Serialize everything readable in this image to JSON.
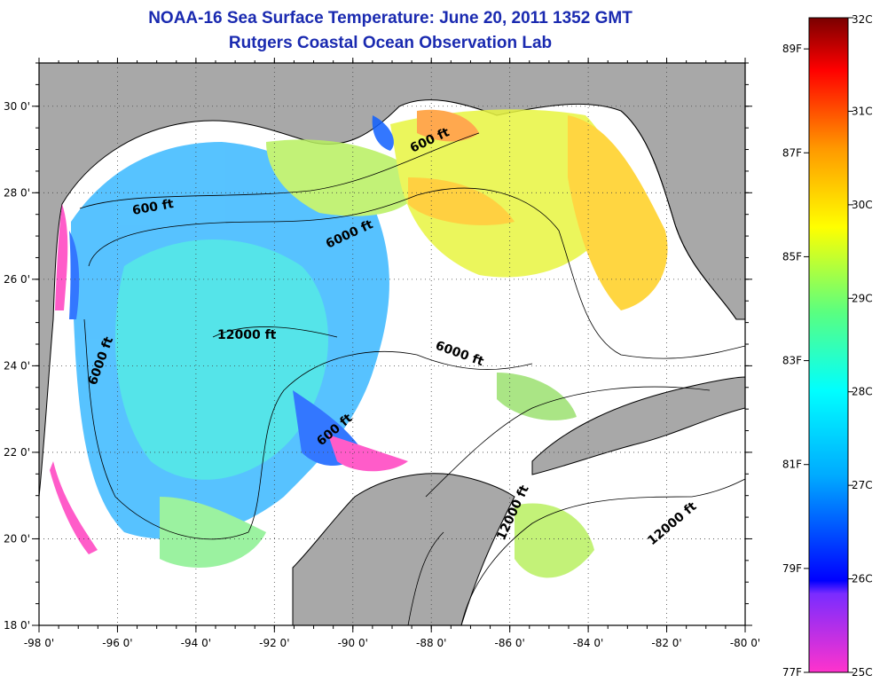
{
  "title": "NOAA-16 Sea Surface Temperature:  June 20, 2011 1352 GMT",
  "subtitle": "Rutgers Coastal Ocean Observation Lab",
  "map": {
    "lon_range": [
      -98,
      -80
    ],
    "lat_range": [
      18,
      31
    ],
    "x_ticks": [
      "-98 0'",
      "-96 0'",
      "-94 0'",
      "-92 0'",
      "-90 0'",
      "-88 0'",
      "-86 0'",
      "-84 0'",
      "-82 0'",
      "-80 0'"
    ],
    "y_ticks": [
      "30 0'",
      "28 0'",
      "26 0'",
      "24 0'",
      "22 0'",
      "20 0'",
      "18 0'"
    ],
    "grid": true,
    "land_color": "#a8a8a8",
    "no_data_color": "#ffffff",
    "depth_labels": [
      "600 ft",
      "600 ft",
      "6000 ft",
      "12000 ft",
      "6000 ft",
      "6000 ft",
      "600 ft",
      "12000 ft",
      "12000 ft"
    ]
  },
  "colorbar": {
    "c_labels": [
      "32C",
      "31C",
      "30C",
      "29C",
      "28C",
      "27C",
      "26C",
      "25C"
    ],
    "f_labels": [
      "89F",
      "87F",
      "85F",
      "83F",
      "81F",
      "79F",
      "77F"
    ],
    "range_c": [
      25,
      32
    ],
    "colors": [
      "#ff33cc",
      "#7a2cff",
      "#0000ff",
      "#00ffff",
      "#5aff80",
      "#ffff00",
      "#ff9900",
      "#ff0000",
      "#7a0000"
    ]
  }
}
